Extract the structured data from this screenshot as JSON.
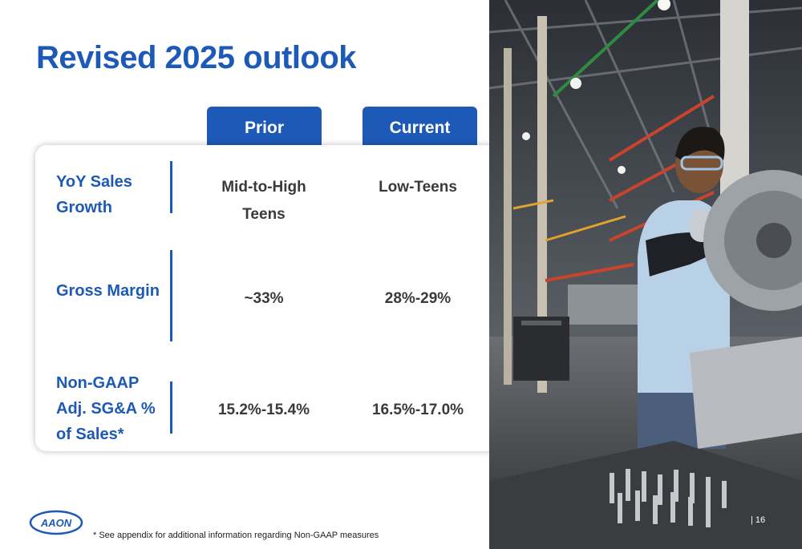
{
  "slide": {
    "title": "Revised 2025 outlook",
    "columns": {
      "prior": "Prior",
      "current": "Current"
    },
    "rows": [
      {
        "label_lines": [
          "YoY Sales",
          "Growth"
        ],
        "prior_lines": [
          "Mid-to-High",
          "Teens"
        ],
        "current": "Low-Teens"
      },
      {
        "label_lines": [
          "Gross Margin"
        ],
        "prior_lines": [
          "~33%"
        ],
        "current": "28%-29%"
      },
      {
        "label_lines": [
          "Non-GAAP",
          "Adj. SG&A %",
          "of Sales*"
        ],
        "prior_lines": [
          "15.2%-15.4%"
        ],
        "current": "16.5%-17.0%"
      }
    ],
    "footnote": "* See appendix for additional information regarding Non-GAAP measures",
    "logo_text": "AAON",
    "page_number": "| 16"
  },
  "colors": {
    "brand_blue": "#1d59b6",
    "cell_text": "#3a3a3a"
  },
  "photo": {
    "icon": "factory-worker-photo"
  }
}
